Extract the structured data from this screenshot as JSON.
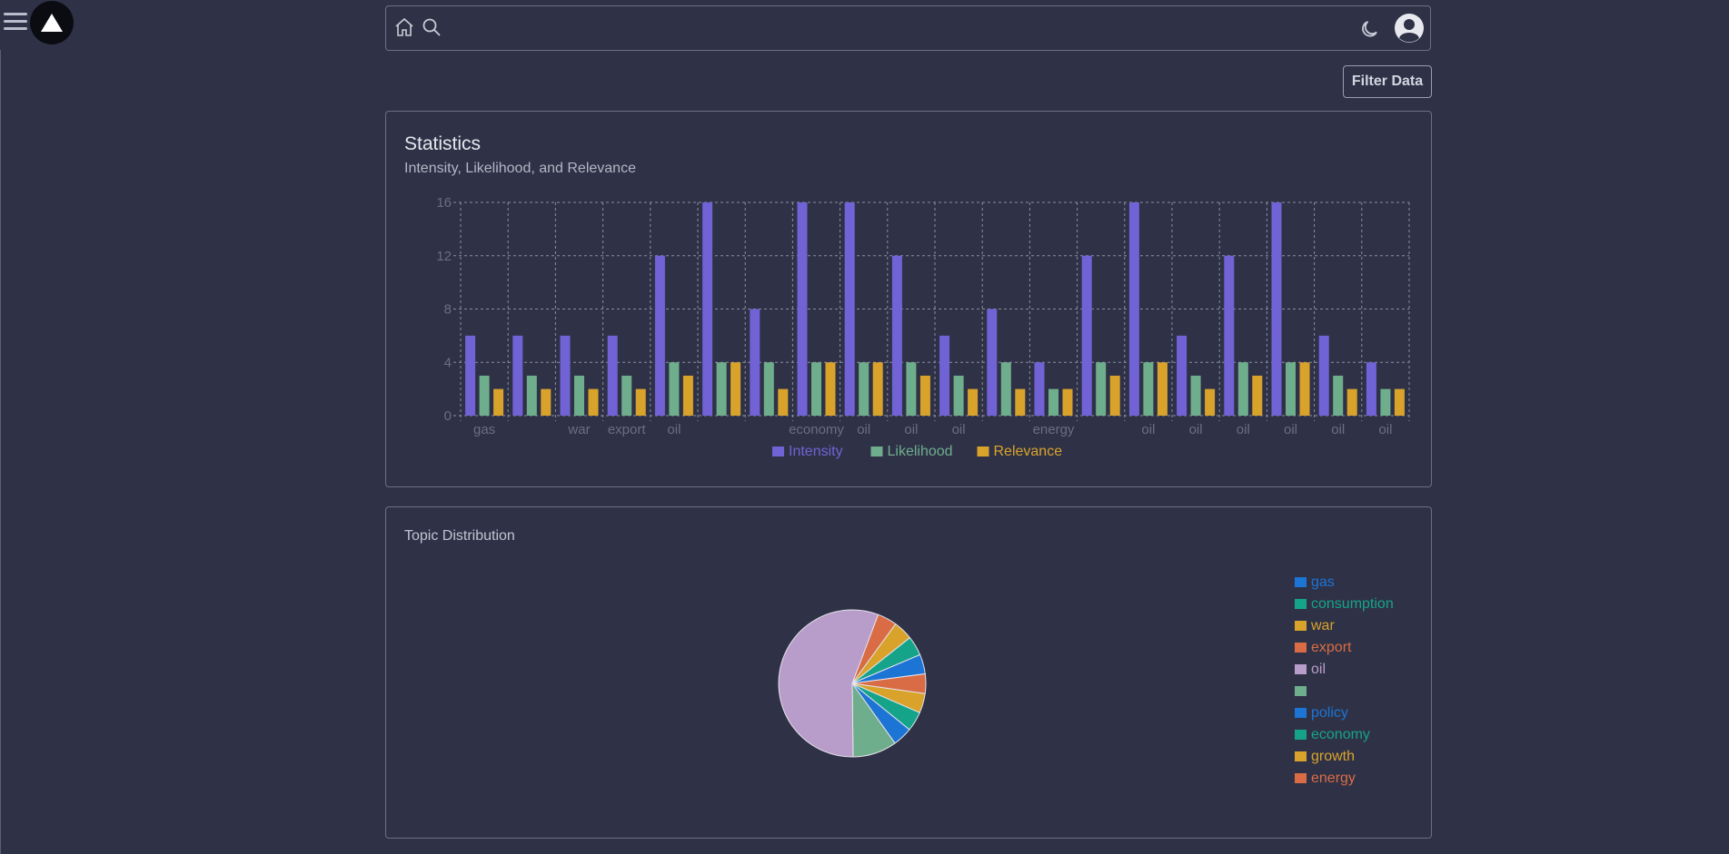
{
  "header": {
    "menu_icon": "hamburger-menu-icon",
    "logo_icon": "triangle-logo-icon",
    "home_icon": "home-icon",
    "search_icon": "search-icon",
    "theme_icon": "moon-icon",
    "user_icon": "user-avatar-icon"
  },
  "toolbar": {
    "filter_label": "Filter Data"
  },
  "statistics": {
    "title": "Statistics",
    "subtitle": "Intensity, Likelihood, and Relevance"
  },
  "topics": {
    "title": "Topic Distribution"
  },
  "colors": {
    "background": "#2f3247",
    "intensity": "#7162d6",
    "likelihood": "#6fae8c",
    "relevance": "#d9a32b"
  },
  "chart_data": [
    {
      "type": "bar",
      "categories": [
        "gas",
        "",
        "war",
        "export",
        "oil",
        "",
        "",
        "economy",
        "oil",
        "oil",
        "oil",
        "",
        "energy",
        "",
        "oil",
        "oil",
        "oil",
        "oil",
        "oil",
        "oil"
      ],
      "series": [
        {
          "name": "Intensity",
          "color": "#7162d6",
          "values": [
            6,
            6,
            6,
            6,
            12,
            16,
            8,
            16,
            16,
            12,
            6,
            8,
            4,
            12,
            16,
            6,
            12,
            16,
            6,
            4
          ]
        },
        {
          "name": "Likelihood",
          "color": "#6fae8c",
          "values": [
            3,
            3,
            3,
            3,
            4,
            4,
            4,
            4,
            4,
            4,
            3,
            4,
            2,
            4,
            4,
            3,
            4,
            4,
            3,
            2
          ]
        },
        {
          "name": "Relevance",
          "color": "#d9a32b",
          "values": [
            2,
            2,
            2,
            2,
            3,
            4,
            2,
            4,
            4,
            3,
            2,
            2,
            2,
            3,
            4,
            2,
            3,
            4,
            2,
            2
          ]
        }
      ],
      "yticks": [
        0,
        4,
        8,
        12,
        16
      ],
      "ylim": [
        0,
        16
      ],
      "grid": true,
      "legend": "bottom-center"
    },
    {
      "type": "pie",
      "labels": [
        "gas",
        "consumption",
        "war",
        "export",
        "oil",
        "",
        "policy",
        "economy",
        "growth",
        "energy"
      ],
      "colors": [
        "#1c74d4",
        "#15a48a",
        "#d9a32b",
        "#d96c44",
        "#b89cc9",
        "#6fae8c",
        "#1c74d4",
        "#15a48a",
        "#d9a32b",
        "#d96c44"
      ],
      "slices": [
        {
          "label": "export",
          "value": 4
        },
        {
          "label": "war",
          "value": 4
        },
        {
          "label": "consumption",
          "value": 4
        },
        {
          "label": "gas",
          "value": 4
        },
        {
          "label": "export",
          "value": 4
        },
        {
          "label": "war",
          "value": 4
        },
        {
          "label": "consumption",
          "value": 4
        },
        {
          "label": "gas",
          "value": 4
        },
        {
          "label": "",
          "value": 9
        },
        {
          "label": "oil",
          "value": 52
        }
      ],
      "legend": "right"
    }
  ]
}
